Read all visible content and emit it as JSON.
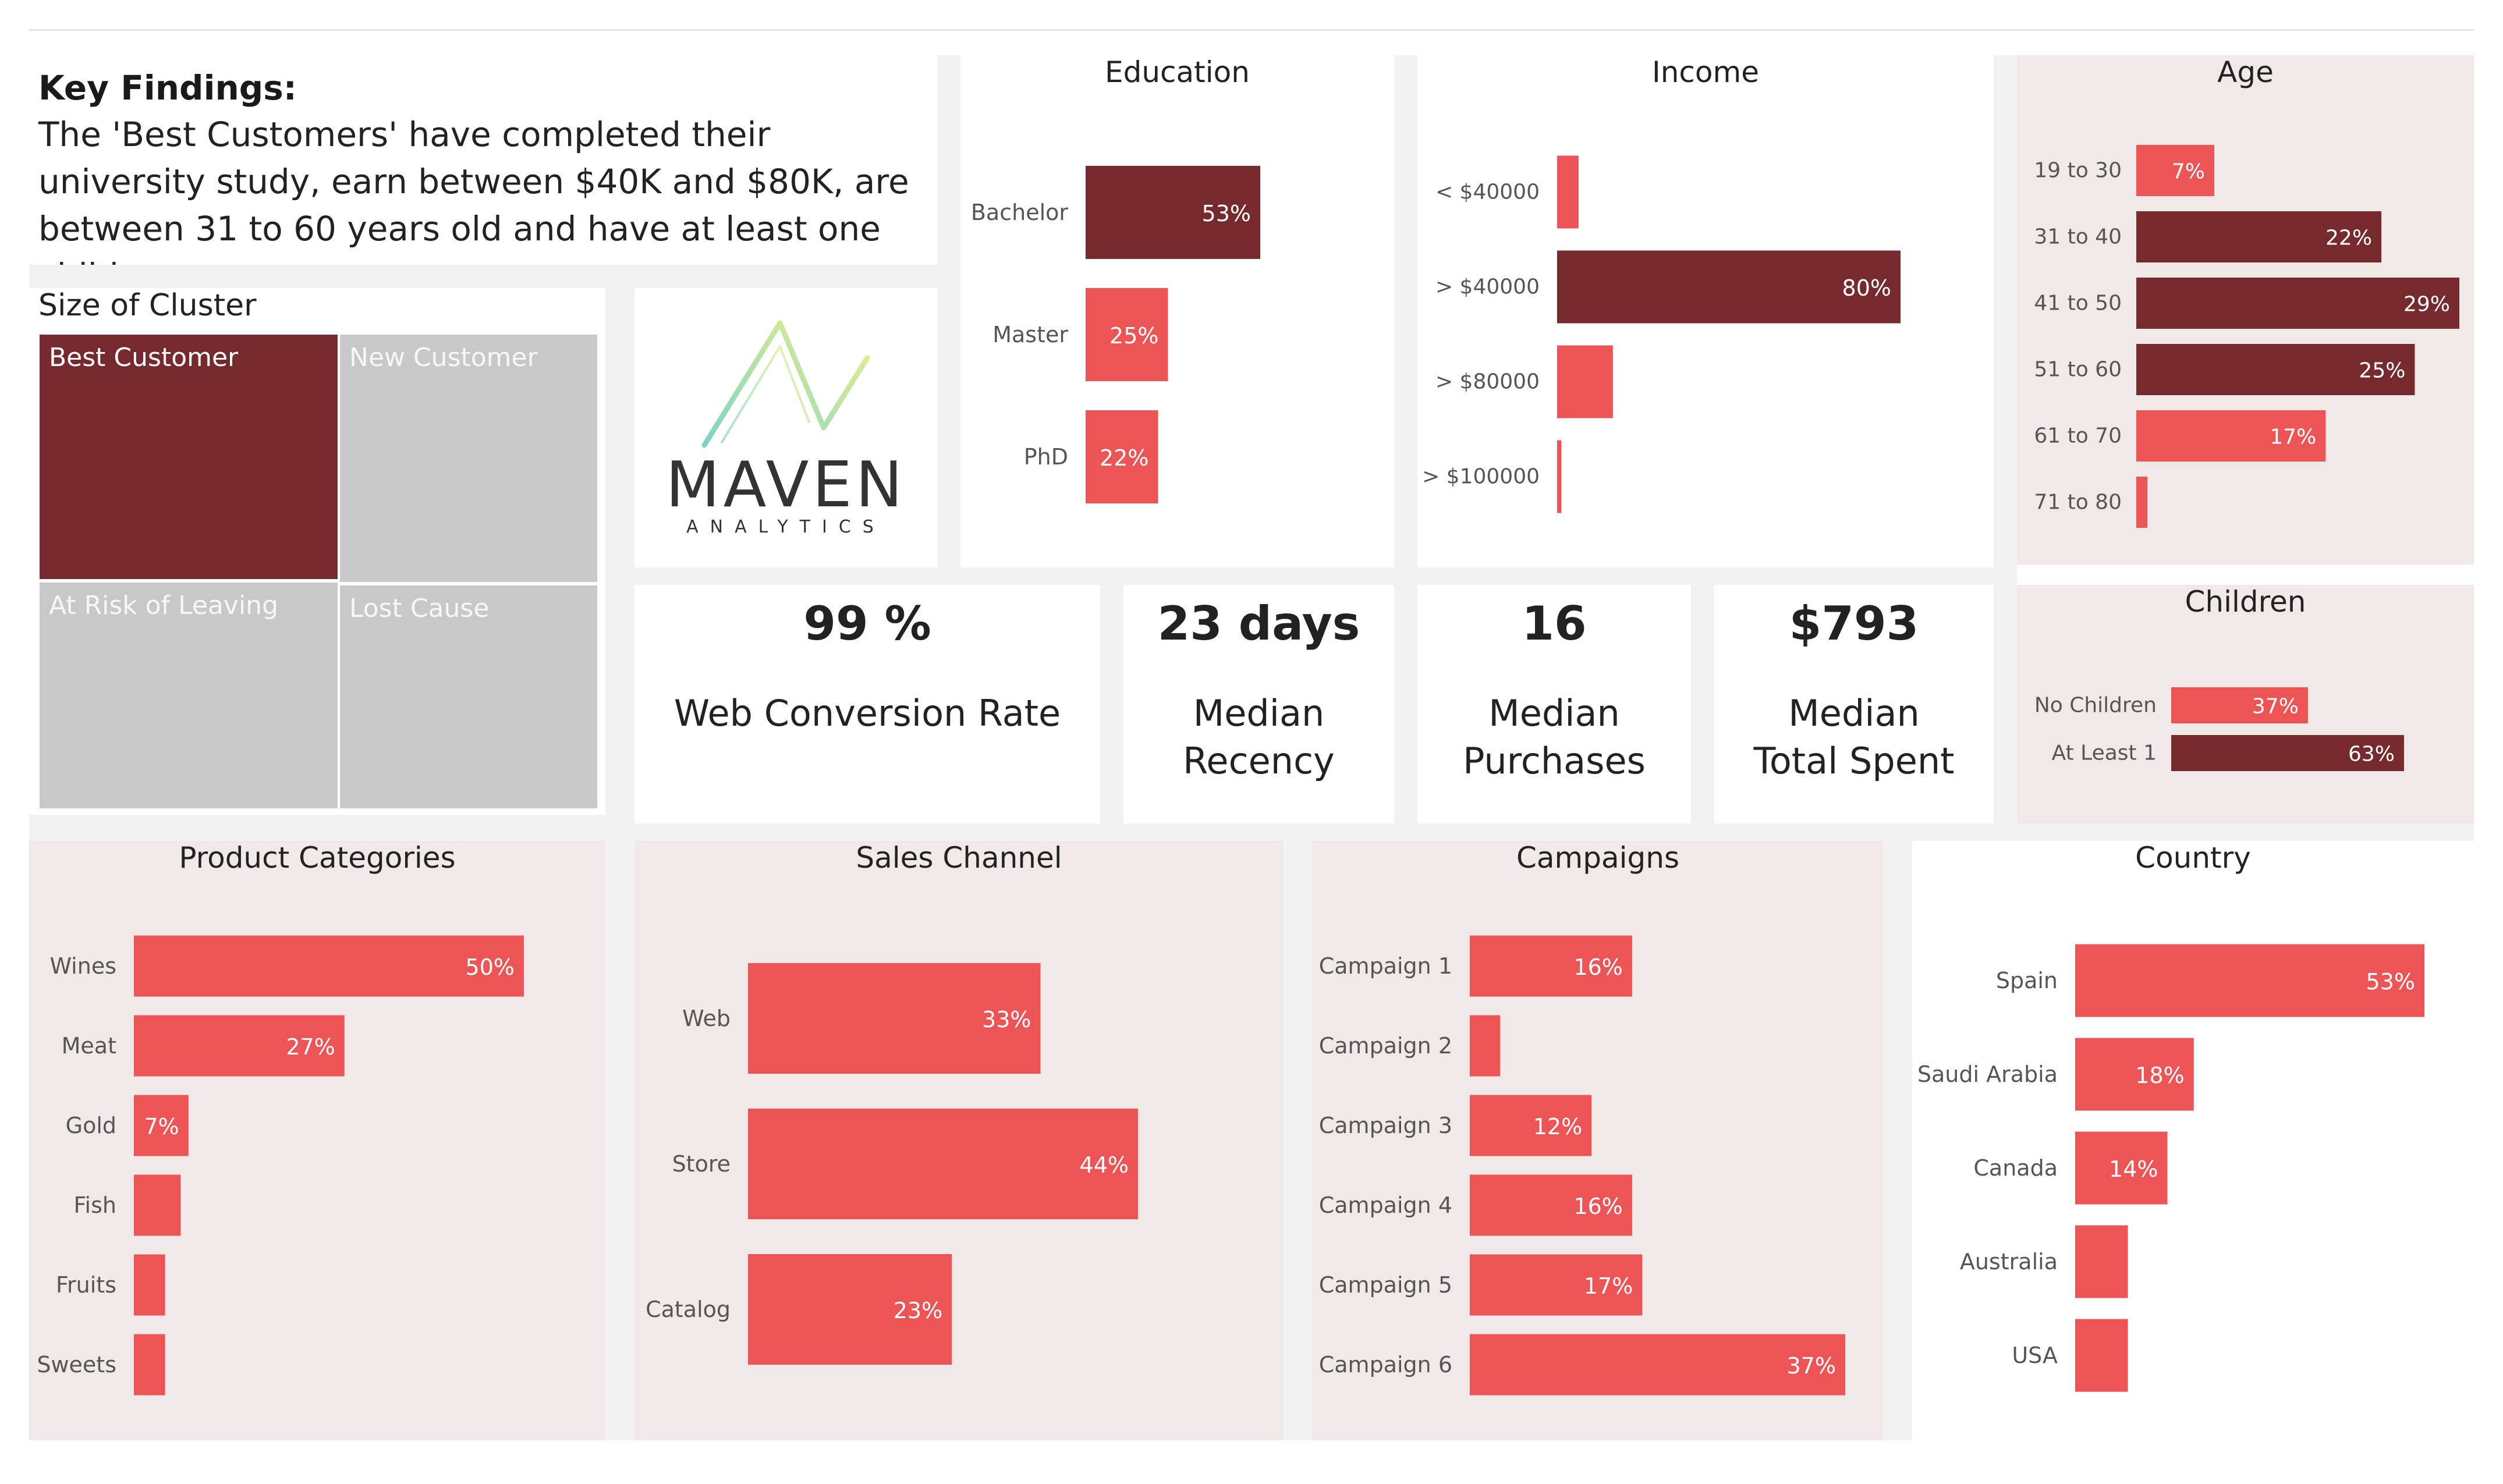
{
  "colors": {
    "dark": "#762a2e",
    "light": "#ec5456",
    "tile_gray": "#c8c8c8"
  },
  "key_findings": {
    "title": "Key Findings:",
    "text": "The 'Best Customers' have completed their university study, earn between $40K and $80K, are between 31 to 60 years old and have at least one children."
  },
  "cluster": {
    "title": "Size of Cluster",
    "tiles": [
      "Best Customer",
      "New Customer",
      "At Risk of Leaving",
      "Lost Cause"
    ]
  },
  "logo": {
    "name": "MAVEN",
    "sub": "ANALYTICS",
    "icon": "maven-logo-icon"
  },
  "kpis": [
    {
      "value": "99 %",
      "label": "Web Conversion Rate"
    },
    {
      "value": "23 days",
      "label": "Median\nRecency"
    },
    {
      "value": "16",
      "label": "Median\nPurchases"
    },
    {
      "value": "$793",
      "label": "Median\nTotal Spent"
    }
  ],
  "chart_data": [
    {
      "id": "education",
      "type": "bar",
      "orientation": "horizontal",
      "title": "Education",
      "categories": [
        "Bachelor",
        "Master",
        "PhD"
      ],
      "values": [
        53,
        25,
        22
      ],
      "labels": [
        "53%",
        "25%",
        "22%"
      ],
      "highlight": [
        true,
        false,
        false
      ]
    },
    {
      "id": "income",
      "type": "bar",
      "orientation": "horizontal",
      "title": "Income",
      "categories": [
        "< $40000",
        "> $40000",
        "> $80000",
        "> $100000"
      ],
      "values": [
        5,
        80,
        13,
        1
      ],
      "labels": [
        "",
        "80%",
        "",
        ""
      ],
      "highlight": [
        false,
        true,
        false,
        false
      ]
    },
    {
      "id": "age",
      "type": "bar",
      "orientation": "horizontal",
      "title": "Age",
      "categories": [
        "19 to 30",
        "31 to 40",
        "41 to 50",
        "51 to 60",
        "61 to 70",
        "71 to 80"
      ],
      "values": [
        7,
        22,
        29,
        25,
        17,
        1
      ],
      "labels": [
        "7%",
        "22%",
        "29%",
        "25%",
        "17%",
        ""
      ],
      "highlight": [
        false,
        true,
        true,
        true,
        false,
        false
      ]
    },
    {
      "id": "children",
      "type": "bar",
      "orientation": "horizontal",
      "title": "Children",
      "categories": [
        "No Children",
        "At Least 1"
      ],
      "values": [
        37,
        63
      ],
      "labels": [
        "37%",
        "63%"
      ],
      "highlight": [
        false,
        true
      ]
    },
    {
      "id": "product",
      "type": "bar",
      "orientation": "horizontal",
      "title": "Product Categories",
      "categories": [
        "Wines",
        "Meat",
        "Gold",
        "Fish",
        "Fruits",
        "Sweets"
      ],
      "values": [
        50,
        27,
        7,
        6,
        4,
        4
      ],
      "labels": [
        "50%",
        "27%",
        "7%",
        "",
        "",
        ""
      ],
      "highlight": [
        false,
        false,
        false,
        false,
        false,
        false
      ]
    },
    {
      "id": "sales",
      "type": "bar",
      "orientation": "horizontal",
      "title": "Sales Channel",
      "categories": [
        "Web",
        "Store",
        "Catalog"
      ],
      "values": [
        33,
        44,
        23
      ],
      "labels": [
        "33%",
        "44%",
        "23%"
      ],
      "highlight": [
        false,
        false,
        false
      ]
    },
    {
      "id": "campaigns",
      "type": "bar",
      "orientation": "horizontal",
      "title": "Campaigns",
      "categories": [
        "Campaign 1",
        "Campaign 2",
        "Campaign 3",
        "Campaign 4",
        "Campaign 5",
        "Campaign 6"
      ],
      "values": [
        16,
        3,
        12,
        16,
        17,
        37
      ],
      "labels": [
        "16%",
        "",
        "12%",
        "16%",
        "17%",
        "37%"
      ],
      "highlight": [
        false,
        false,
        false,
        false,
        false,
        false
      ]
    },
    {
      "id": "country",
      "type": "bar",
      "orientation": "horizontal",
      "title": "Country",
      "categories": [
        "Spain",
        "Saudi Arabia",
        "Canada",
        "Australia",
        "USA"
      ],
      "values": [
        53,
        18,
        14,
        8,
        8
      ],
      "labels": [
        "53%",
        "18%",
        "14%",
        "",
        ""
      ],
      "highlight": [
        false,
        false,
        false,
        false,
        false
      ]
    }
  ]
}
